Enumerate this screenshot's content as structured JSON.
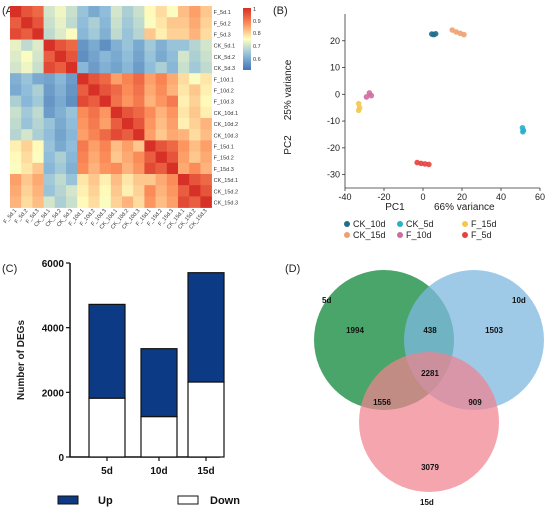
{
  "figure": {
    "panel_labels": [
      "(A)",
      "(B)",
      "(C)",
      "(D)"
    ]
  },
  "chart_data": [
    {
      "panel": "(A)",
      "type": "heatmap",
      "row_labels": [
        "F_5d.1",
        "F_5d.2",
        "F_5d.3",
        "CK_5d.1",
        "CK_5d.2",
        "CK_5d.3",
        "F_10d.1",
        "F_10d.2",
        "F_10d.3",
        "CK_10d.1",
        "CK_10d.2",
        "CK_10d.3",
        "F_15d.1",
        "F_15d.2",
        "F_15d.3",
        "CK_15d.1",
        "CK_15d.2",
        "CK_15d.3"
      ],
      "col_labels": [
        "F_5d.1",
        "F_5d.2",
        "F_5d.3",
        "CK_5d.1",
        "CK_5d.2",
        "CK_5d.3",
        "F_10d.1",
        "F_10d.2",
        "F_10d.3",
        "CK_10d.1",
        "CK_10d.2",
        "CK_10d.3",
        "F_15d.1",
        "F_15d.2",
        "F_15d.3",
        "CK_15d.1",
        "CK_15d.2",
        "CK_15d.3"
      ],
      "colorbar_ticks": [
        "1",
        "0.9",
        "0.8",
        "0.7",
        "0.6"
      ],
      "color_range": [
        0.55,
        1.0
      ],
      "colors": {
        "low": "#4575b4",
        "mid": "#ffffbf",
        "high": "#d73027"
      }
    },
    {
      "panel": "(B)",
      "type": "scatter",
      "xlabel": "PC1",
      "xlabel_pct": "66% variance",
      "ylabel": "PC2",
      "ylabel_pct": "25% variance",
      "xlim": [
        -40,
        60
      ],
      "ylim": [
        -35,
        30
      ],
      "x_ticks": [
        "-40",
        "-20",
        "0",
        "20",
        "40",
        "60"
      ],
      "y_ticks": [
        "20",
        "10",
        "0",
        "-10",
        "-20",
        "-30"
      ],
      "series": [
        {
          "name": "CK_10d",
          "color": "#1f6f8b",
          "points": [
            [
              4.5,
              22.5
            ],
            [
              5.5,
              22.3
            ],
            [
              6.5,
              22.6
            ]
          ]
        },
        {
          "name": "CK_15d",
          "color": "#f0a070",
          "points": [
            [
              15,
              24
            ],
            [
              17,
              23.3
            ],
            [
              19,
              22.8
            ],
            [
              21,
              22.3
            ]
          ]
        },
        {
          "name": "CK_5d",
          "color": "#2bb0c8",
          "points": [
            [
              51,
              -12.5
            ],
            [
              51.5,
              -13.5
            ],
            [
              51.2,
              -14
            ]
          ]
        },
        {
          "name": "F_10d",
          "color": "#d06aa0",
          "points": [
            [
              -29,
              -1
            ],
            [
              -27.5,
              0.5
            ],
            [
              -26.5,
              -0.5
            ]
          ]
        },
        {
          "name": "F_15d",
          "color": "#f2c94c",
          "points": [
            [
              -33,
              -3.5
            ],
            [
              -32.5,
              -5
            ],
            [
              -33,
              -6
            ]
          ]
        },
        {
          "name": "F_5d",
          "color": "#e8403c",
          "points": [
            [
              -3,
              -25.5
            ],
            [
              -1,
              -25.8
            ],
            [
              1,
              -26
            ],
            [
              3,
              -26.2
            ]
          ]
        }
      ]
    },
    {
      "panel": "(C)",
      "type": "bar",
      "stacked": true,
      "categories": [
        "5d",
        "10d",
        "15d"
      ],
      "ylabel": "Number of DEGs",
      "ylim": [
        0,
        6000
      ],
      "y_ticks": [
        "6000",
        "4000",
        "2000",
        "0"
      ],
      "series": [
        {
          "name": "Up",
          "color": "#0d3a84",
          "values": [
            2900,
            2100,
            3380
          ]
        },
        {
          "name": "Down",
          "color": "#ffffff",
          "values": [
            1820,
            1250,
            2320
          ]
        }
      ]
    },
    {
      "panel": "(D)",
      "type": "venn",
      "sets": [
        {
          "name": "5d",
          "color": "#3a9d5d"
        },
        {
          "name": "10d",
          "color": "#7db8e0"
        },
        {
          "name": "15d",
          "color": "#f0828f"
        }
      ],
      "regions": {
        "only_5d": "1994",
        "only_10d": "1503",
        "only_15d": "3079",
        "5d_10d": "438",
        "5d_15d": "1556",
        "10d_15d": "909",
        "all": "2281"
      }
    }
  ]
}
